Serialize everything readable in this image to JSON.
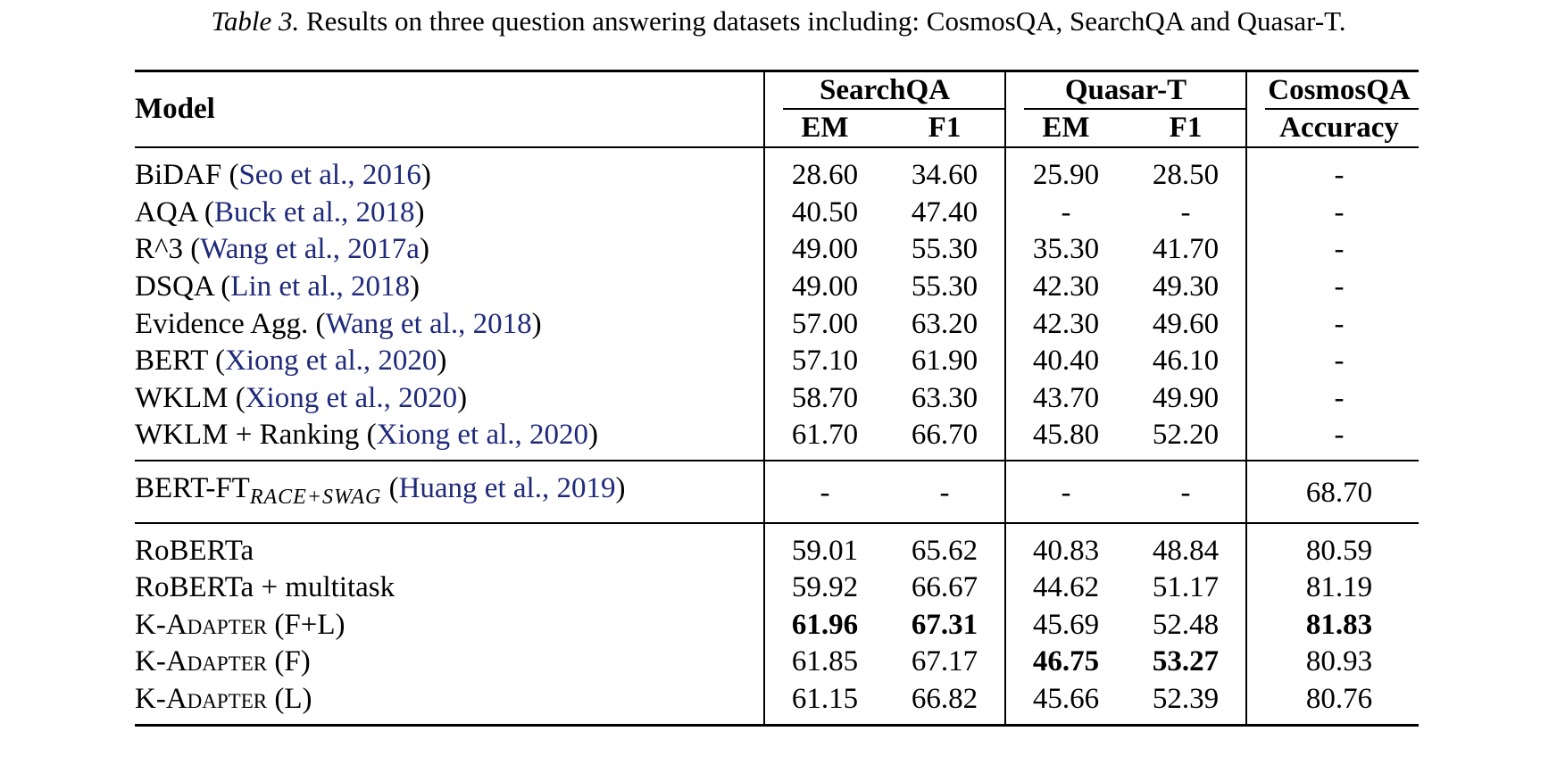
{
  "caption": {
    "label": "Table 3.",
    "text": "Results on three question answering datasets including: CosmosQA, SearchQA and Quasar-T."
  },
  "header": {
    "model": "Model",
    "groups": [
      "SearchQA",
      "Quasar-T",
      "CosmosQA"
    ],
    "metrics": [
      "EM",
      "F1",
      "EM",
      "F1",
      "Accuracy"
    ]
  },
  "groups": [
    {
      "rows": [
        {
          "name": "BiDAF (",
          "cite_a": "Seo et al.",
          "sep": ", ",
          "cite_b": "2016",
          "end": ")",
          "v": [
            "28.60",
            "34.60",
            "25.90",
            "28.50",
            "-"
          ]
        },
        {
          "name": "AQA (",
          "cite_a": "Buck et al.",
          "sep": ", ",
          "cite_b": "2018",
          "end": ")",
          "v": [
            "40.50",
            "47.40",
            "-",
            "-",
            "-"
          ]
        },
        {
          "name": "R^3 (",
          "cite_a": "Wang et al.",
          "sep": ", ",
          "cite_b": "2017a",
          "end": ")",
          "v": [
            "49.00",
            "55.30",
            "35.30",
            "41.70",
            "-"
          ]
        },
        {
          "name": "DSQA (",
          "cite_a": "Lin et al.",
          "sep": ", ",
          "cite_b": "2018",
          "end": ")",
          "v": [
            "49.00",
            "55.30",
            "42.30",
            "49.30",
            "-"
          ]
        },
        {
          "name": "Evidence Agg. (",
          "cite_a": "Wang et al.",
          "sep": ", ",
          "cite_b": "2018",
          "end": ")",
          "v": [
            "57.00",
            "63.20",
            "42.30",
            "49.60",
            "-"
          ]
        },
        {
          "name": "BERT (",
          "cite_a": "Xiong et al.",
          "sep": ", ",
          "cite_b": "2020",
          "end": ")",
          "v": [
            "57.10",
            "61.90",
            "40.40",
            "46.10",
            "-"
          ]
        },
        {
          "name": "WKLM (",
          "cite_a": "Xiong et al.",
          "sep": ", ",
          "cite_b": "2020",
          "end": ")",
          "v": [
            "58.70",
            "63.30",
            "43.70",
            "49.90",
            "-"
          ]
        },
        {
          "name": "WKLM + Ranking (",
          "cite_a": "Xiong et al.",
          "sep": ", ",
          "cite_b": "2020",
          "end": ")",
          "v": [
            "61.70",
            "66.70",
            "45.80",
            "52.20",
            "-"
          ]
        }
      ]
    },
    {
      "rows": [
        {
          "name": "BERT-FT",
          "subscript": "RACE+SWAG",
          "pre": " (",
          "cite_a": "Huang et al.",
          "sep": ", ",
          "cite_b": "2019",
          "end": ")",
          "v": [
            "-",
            "-",
            "-",
            "-",
            "68.70"
          ]
        }
      ]
    },
    {
      "rows": [
        {
          "name": "RoBERTa",
          "v": [
            "59.01",
            "65.62",
            "40.83",
            "48.84",
            "80.59"
          ]
        },
        {
          "name": "RoBERTa + multitask",
          "v": [
            "59.92",
            "66.67",
            "44.62",
            "51.17",
            "81.19"
          ]
        },
        {
          "name_a": "K-A",
          "name_sc": "dapter",
          "name_b": " (F+L)",
          "v": [
            "61.96",
            "67.31",
            "45.69",
            "52.48",
            "81.83"
          ],
          "bold": [
            true,
            true,
            false,
            false,
            true
          ]
        },
        {
          "name_a": "K-A",
          "name_sc": "dapter",
          "name_b": " (F)",
          "v": [
            "61.85",
            "67.17",
            "46.75",
            "53.27",
            "80.93"
          ],
          "bold": [
            false,
            false,
            true,
            true,
            false
          ]
        },
        {
          "name_a": "K-A",
          "name_sc": "dapter",
          "name_b": " (L)",
          "v": [
            "61.15",
            "66.82",
            "45.66",
            "52.39",
            "80.76"
          ],
          "bold": [
            false,
            false,
            false,
            false,
            false
          ]
        }
      ]
    }
  ]
}
